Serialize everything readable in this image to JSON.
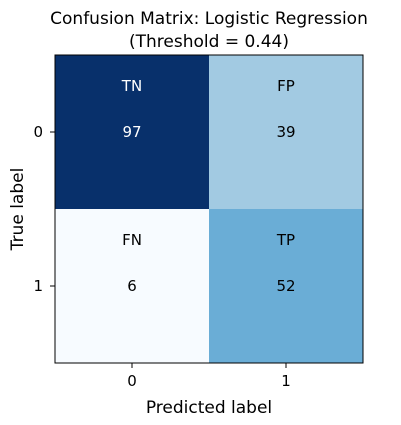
{
  "chart_data": {
    "type": "heatmap",
    "title_lines": [
      "Confusion Matrix: Logistic Regression",
      "(Threshold = 0.44)"
    ],
    "xlabel": "Predicted label",
    "ylabel": "True label",
    "x_tick_labels": [
      "0",
      "1"
    ],
    "y_tick_labels": [
      "0",
      "1"
    ],
    "cells": [
      {
        "row": 0,
        "col": 0,
        "label": "TN",
        "value": 97,
        "value_text": "97"
      },
      {
        "row": 0,
        "col": 1,
        "label": "FP",
        "value": 39,
        "value_text": "39"
      },
      {
        "row": 1,
        "col": 0,
        "label": "FN",
        "value": 6,
        "value_text": "6"
      },
      {
        "row": 1,
        "col": 1,
        "label": "TP",
        "value": 52,
        "value_text": "52"
      }
    ],
    "colormap": "Blues",
    "grid": false,
    "legend": "none"
  },
  "colors": {
    "cell_0_0": "#08306b",
    "cell_0_1": "#a2cae2",
    "cell_1_0": "#f7fbff",
    "cell_1_1": "#6aadd6",
    "text_on_dark": "#ffffff",
    "text_on_light": "#000000",
    "frame": "#000000"
  }
}
